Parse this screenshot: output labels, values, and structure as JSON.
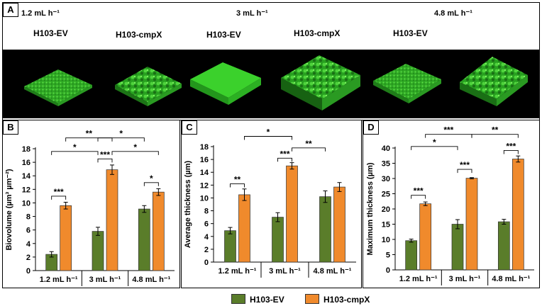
{
  "panels": {
    "A": "A",
    "B": "B",
    "C": "C",
    "D": "D"
  },
  "top_images": {
    "flow_labels": [
      "1.2 mL h⁻¹",
      "3 mL h⁻¹",
      "4.8 mL h⁻¹"
    ],
    "strain_labels": [
      "H103-EV",
      "H103-cmpX",
      "H103-EV",
      "H103-cmpX",
      "H103-EV"
    ]
  },
  "colors": {
    "H103-EV": "#5a7d2a",
    "H103-cmpX": "#f08a2c",
    "biofilm_green": "#39c92c"
  },
  "legend": {
    "ev": "H103-EV",
    "cmpx": "H103-cmpX"
  },
  "chart_data": [
    {
      "type": "bar",
      "panel": "B",
      "categories": [
        "1.2 mL h⁻¹",
        "3 mL h⁻¹",
        "4.8 mL h⁻¹"
      ],
      "series": [
        {
          "name": "H103-EV",
          "values": [
            2.4,
            5.8,
            9.1
          ],
          "errors": [
            0.4,
            0.6,
            0.5
          ]
        },
        {
          "name": "H103-cmpX",
          "values": [
            9.6,
            14.9,
            11.6
          ],
          "errors": [
            0.5,
            0.7,
            0.5
          ]
        }
      ],
      "ylabel": "Biovolume (µm³ µm⁻²)",
      "ylim": [
        0,
        18
      ],
      "yticks": [
        "0",
        "2",
        "4",
        "6",
        "8",
        "10",
        "12",
        "14",
        "16",
        "18"
      ],
      "significance": [
        {
          "label": "***",
          "type": "within",
          "cat": 0,
          "value": 11
        },
        {
          "label": "***",
          "type": "within",
          "cat": 1,
          "value": 16.5
        },
        {
          "label": "*",
          "type": "within",
          "cat": 2,
          "value": 13
        },
        {
          "label": "*",
          "type": "between",
          "from": [
            0,
            0
          ],
          "to": [
            1,
            0
          ],
          "value": 17.6
        },
        {
          "label": "*",
          "type": "between",
          "from": [
            1,
            1
          ],
          "to": [
            2,
            1
          ],
          "value": 17.6
        },
        {
          "label": "**",
          "type": "between",
          "from": [
            0,
            1
          ],
          "to": [
            1,
            1
          ],
          "value": 19.6
        },
        {
          "label": "*",
          "type": "between",
          "from": [
            1,
            0
          ],
          "to": [
            2,
            0
          ],
          "value": 19.6
        }
      ]
    },
    {
      "type": "bar",
      "panel": "C",
      "categories": [
        "1.2 mL h⁻¹",
        "3 mL h⁻¹",
        "4.8 mL h⁻¹"
      ],
      "series": [
        {
          "name": "H103-EV",
          "values": [
            4.9,
            7.0,
            10.2
          ],
          "errors": [
            0.5,
            0.7,
            0.9
          ]
        },
        {
          "name": "H103-cmpX",
          "values": [
            10.5,
            15.0,
            11.7
          ],
          "errors": [
            0.9,
            0.5,
            0.7
          ]
        }
      ],
      "ylabel": "Average thickness (µm)",
      "ylim": [
        0,
        18
      ],
      "yticks": [
        "0",
        "2",
        "4",
        "6",
        "8",
        "10",
        "12",
        "14",
        "16",
        "18"
      ],
      "significance": [
        {
          "label": "**",
          "type": "within",
          "cat": 0,
          "value": 12.2
        },
        {
          "label": "***",
          "type": "within",
          "cat": 1,
          "value": 16.2
        },
        {
          "label": "**",
          "type": "between",
          "from": [
            1,
            1
          ],
          "to": [
            2,
            0
          ],
          "value": 17.8
        },
        {
          "label": "*",
          "type": "between",
          "from": [
            0,
            1
          ],
          "to": [
            1,
            1
          ],
          "value": 19.6
        }
      ]
    },
    {
      "type": "bar",
      "panel": "D",
      "categories": [
        "1.2 mL h⁻¹",
        "3 mL h⁻¹",
        "4.8 mL h⁻¹"
      ],
      "series": [
        {
          "name": "H103-EV",
          "values": [
            9.6,
            15.0,
            15.8
          ],
          "errors": [
            0.5,
            1.5,
            0.8
          ]
        },
        {
          "name": "H103-cmpX",
          "values": [
            21.7,
            30.1,
            36.4
          ],
          "errors": [
            0.6,
            0.2,
            1.0
          ]
        }
      ],
      "ylabel": "Maximum thickness (µm)",
      "ylim": [
        0,
        40
      ],
      "yticks": [
        "0",
        "5",
        "10",
        "15",
        "20",
        "25",
        "30",
        "35",
        "40"
      ],
      "significance": [
        {
          "label": "***",
          "type": "within",
          "cat": 0,
          "value": 24.5
        },
        {
          "label": "***",
          "type": "within",
          "cat": 1,
          "value": 33
        },
        {
          "label": "***",
          "type": "within",
          "cat": 2,
          "value": 39.2
        },
        {
          "label": "*",
          "type": "between",
          "from": [
            0,
            0
          ],
          "to": [
            1,
            0
          ],
          "value": 40.5
        },
        {
          "label": "***",
          "type": "between",
          "from": [
            0,
            1
          ],
          "to": [
            1,
            1
          ],
          "value": 44.5
        },
        {
          "label": "**",
          "type": "between",
          "from": [
            1,
            1
          ],
          "to": [
            2,
            1
          ],
          "value": 44.5
        }
      ]
    }
  ]
}
